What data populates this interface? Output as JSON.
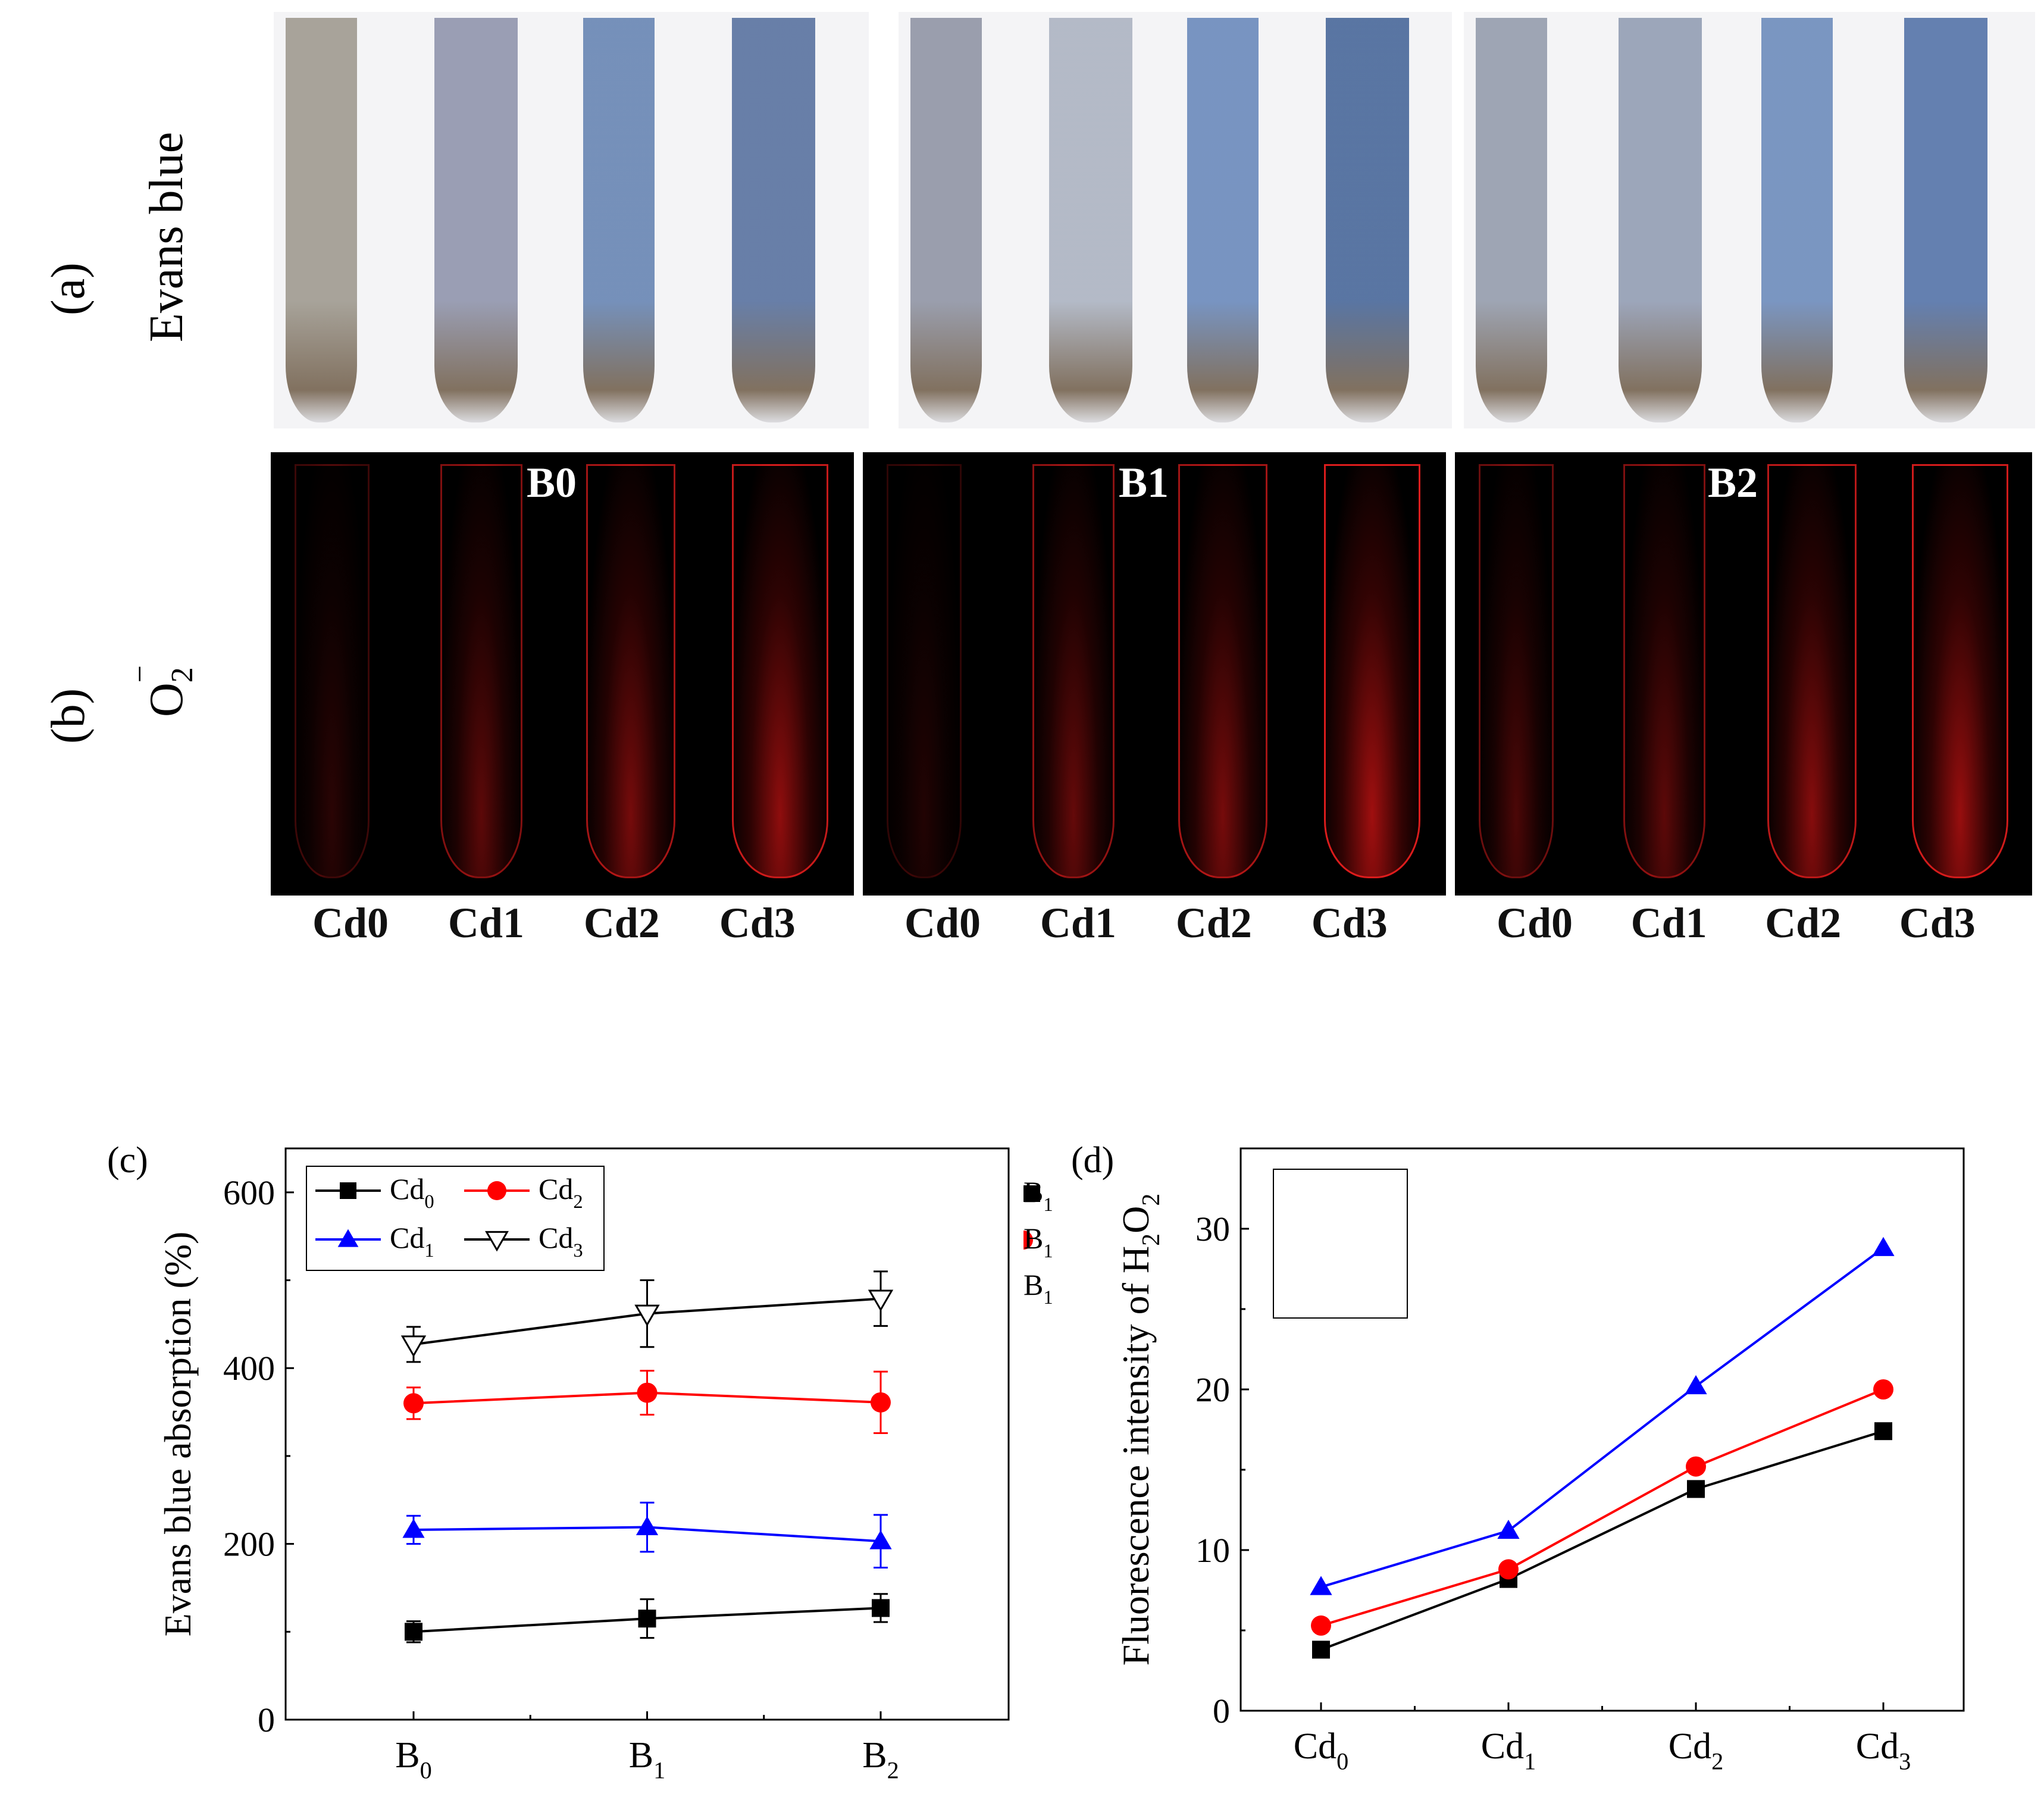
{
  "panel_labels": {
    "a": "(a)",
    "b": "(b)",
    "c": "(c)",
    "d": "(d)"
  },
  "row_labels": {
    "evans": "Evans blue",
    "o2": "O",
    "o2_sub": "2",
    "o2_sup": "−"
  },
  "group_labels": [
    "B0",
    "B1",
    "B2"
  ],
  "cd_labels": [
    "Cd0",
    "Cd1",
    "Cd2",
    "Cd3"
  ],
  "colors": {
    "black": "#000000",
    "red": "#ff0000",
    "blue": "#0000ff",
    "evans_root": "#5a6f9a",
    "fluor_red": "#d01818"
  },
  "chart_data": [
    {
      "type": "line",
      "panel": "(c)",
      "ylabel": "Evans blue absorption (%)",
      "xlabel": "",
      "categories": [
        {
          "base": "B",
          "sub": "0"
        },
        {
          "base": "B",
          "sub": "1"
        },
        {
          "base": "B",
          "sub": "2"
        }
      ],
      "ylim": [
        0,
        650
      ],
      "yticks": [
        0,
        200,
        400,
        600
      ],
      "legend_position": "top-left",
      "series": [
        {
          "name": "Cd",
          "sub": "0",
          "color": "#000000",
          "marker": "square",
          "values": [
            100,
            115,
            127
          ],
          "errors": [
            12,
            22,
            16
          ]
        },
        {
          "name": "Cd",
          "sub": "1",
          "color": "#0000ff",
          "marker": "triangle",
          "values": [
            216,
            219,
            203
          ],
          "errors": [
            16,
            28,
            30
          ]
        },
        {
          "name": "Cd",
          "sub": "2",
          "color": "#ff0000",
          "marker": "circle",
          "values": [
            360,
            372,
            361
          ],
          "errors": [
            18,
            25,
            35
          ]
        },
        {
          "name": "Cd",
          "sub": "3",
          "color": "#000000",
          "marker": "triangle-down-open",
          "values": [
            427,
            462,
            479
          ],
          "errors": [
            20,
            38,
            31
          ]
        }
      ]
    },
    {
      "type": "line",
      "panel": "(d)",
      "ylabel": "Fluorescence intensity of H",
      "ylabel_parts": [
        "Fluorescence intensity of H",
        "2",
        "O",
        "2"
      ],
      "xlabel": "",
      "categories": [
        {
          "base": "Cd",
          "sub": "0"
        },
        {
          "base": "Cd",
          "sub": "1"
        },
        {
          "base": "Cd",
          "sub": "2"
        },
        {
          "base": "Cd",
          "sub": "3"
        }
      ],
      "ylim": [
        0,
        35
      ],
      "yticks": [
        0,
        10,
        20,
        30
      ],
      "legend_position": "top-left",
      "series": [
        {
          "name": "B",
          "sub": "1",
          "color": "#000000",
          "marker": "square",
          "values": [
            3.8,
            8.2,
            13.8,
            17.4
          ]
        },
        {
          "name": "B",
          "sub": "1",
          "color": "#ff0000",
          "marker": "circle",
          "values": [
            5.3,
            8.8,
            15.2,
            20.0
          ]
        },
        {
          "name": "B",
          "sub": "1",
          "color": "#0000ff",
          "marker": "triangle",
          "values": [
            7.7,
            11.2,
            20.2,
            28.8
          ]
        }
      ]
    }
  ]
}
